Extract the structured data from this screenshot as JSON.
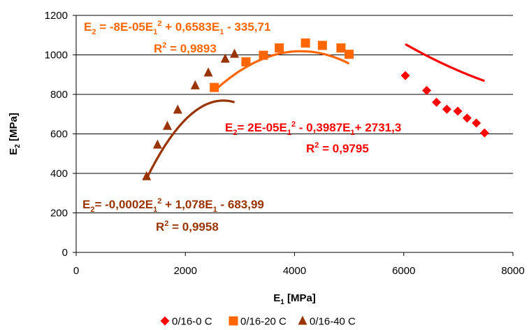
{
  "chart_data": {
    "type": "scatter",
    "xlabel": {
      "base": "E",
      "sub": "1",
      "rest": " [MPa]"
    },
    "ylabel": {
      "base": "E",
      "sub": "2",
      "rest": " [MPa]"
    },
    "xlim": [
      0,
      8000
    ],
    "ylim": [
      0,
      1200
    ],
    "xticks": [
      0,
      2000,
      4000,
      6000,
      8000
    ],
    "yticks": [
      0,
      200,
      400,
      600,
      800,
      1000,
      1200
    ],
    "grid": "horizontal major",
    "legend_position": "bottom",
    "series": [
      {
        "name": "0/16-0 C",
        "color": "#ff0000",
        "marker": "diamond",
        "x": [
          6030,
          6420,
          6600,
          6790,
          6990,
          7160,
          7330,
          7480
        ],
        "y": [
          895,
          820,
          760,
          725,
          715,
          680,
          655,
          605
        ],
        "trend": {
          "a": 2e-05,
          "b": -0.3987,
          "c": 2731.3,
          "x_from": 6030,
          "x_to": 7480
        },
        "equation": {
          "parts": [
            {
              "t": "E"
            },
            {
              "t": "2",
              "sub": true
            },
            {
              "t": "= 2E-05E"
            },
            {
              "t": "1",
              "sub": true
            },
            {
              "t": "2",
              "sup": true
            },
            {
              "t": " - 0,3987E"
            },
            {
              "t": "1",
              "sub": true
            },
            {
              "t": "+ 2731,3"
            }
          ]
        },
        "r2": {
          "parts": [
            {
              "t": "R"
            },
            {
              "t": "2",
              "sup": true
            },
            {
              "t": " = 0,9795"
            }
          ]
        }
      },
      {
        "name": "0/16-20 C",
        "color": "#ff6600",
        "marker": "square",
        "x": [
          2530,
          3110,
          3430,
          3720,
          4200,
          4510,
          4850,
          5000
        ],
        "y": [
          835,
          965,
          998,
          1035,
          1060,
          1048,
          1035,
          1003
        ],
        "trend": {
          "a": -8e-05,
          "b": 0.6583,
          "c": -335.71,
          "x_from": 2530,
          "x_to": 5000
        },
        "equation": {
          "parts": [
            {
              "t": "E"
            },
            {
              "t": "2",
              "sub": true
            },
            {
              "t": " = -8E-05E"
            },
            {
              "t": "1",
              "sub": true
            },
            {
              "t": "2",
              "sup": true
            },
            {
              "t": " + 0,6583E"
            },
            {
              "t": "1",
              "sub": true
            },
            {
              "t": " - 335,71"
            }
          ]
        },
        "r2": {
          "parts": [
            {
              "t": "R"
            },
            {
              "t": "2",
              "sup": true
            },
            {
              "t": " = 0,9893"
            }
          ]
        }
      },
      {
        "name": "0/16-40 C",
        "color": "#993300",
        "marker": "triangle",
        "x": [
          1290,
          1490,
          1670,
          1860,
          2180,
          2420,
          2730,
          2900
        ],
        "y": [
          385,
          545,
          640,
          722,
          845,
          910,
          980,
          1005
        ],
        "trend": {
          "a": -0.0002,
          "b": 1.078,
          "c": -683.99,
          "x_from": 1290,
          "x_to": 2900
        },
        "equation": {
          "parts": [
            {
              "t": "E"
            },
            {
              "t": "2",
              "sub": true
            },
            {
              "t": "= -0,0002E"
            },
            {
              "t": "1",
              "sub": true
            },
            {
              "t": "2",
              "sup": true
            },
            {
              "t": " + 1,078E"
            },
            {
              "t": "1",
              "sub": true
            },
            {
              "t": " - 683,99"
            }
          ]
        },
        "r2": {
          "parts": [
            {
              "t": "R"
            },
            {
              "t": "2",
              "sup": true
            },
            {
              "t": " = 0,9958"
            }
          ]
        }
      }
    ]
  }
}
